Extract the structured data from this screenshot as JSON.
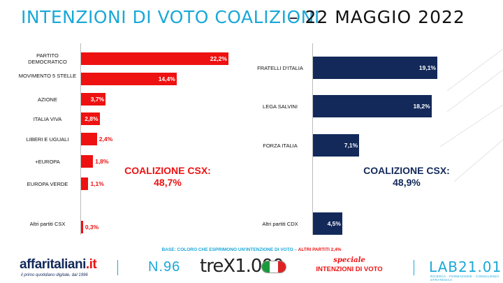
{
  "header": {
    "title": "INTENZIONI DI VOTO COALIZIONI",
    "date": "– 22 MAGGIO 2022"
  },
  "chart_data": [
    {
      "type": "bar",
      "orientation": "horizontal",
      "categories": [
        "PARTITO DEMOCRATICO",
        "MOVIMENTO 5 STELLE",
        "AZIONE",
        "ITALIA VIVA",
        "LIBERI E UGUALI",
        "+EUROPA",
        "EUROPA VERDE",
        "Altri partiti CSX"
      ],
      "values": [
        22.2,
        14.4,
        3.7,
        2.8,
        2.4,
        1.8,
        1.1,
        0.3
      ],
      "labels": [
        "22,2%",
        "14,4%",
        "3,7%",
        "2,8%",
        "2,4%",
        "1,8%",
        "1,1%",
        "0,3%"
      ],
      "color": "#ee1111",
      "annotation": {
        "line1": "COALIZIONE CSX:",
        "line2": "48,7%"
      }
    },
    {
      "type": "bar",
      "orientation": "horizontal",
      "categories": [
        "FRATELLI D'ITALIA",
        "LEGA SALVINI",
        "FORZA ITALIA",
        "Altri partiti CDX"
      ],
      "values": [
        19.1,
        18.2,
        7.1,
        4.5
      ],
      "labels": [
        "19,1%",
        "18,2%",
        "7,1%",
        "4,5%"
      ],
      "color": "#13295a",
      "annotation": {
        "line1": "COALIZIONE CSX:",
        "line2": "48,9%"
      }
    }
  ],
  "base_note": {
    "prefix": "BASE:",
    "text": " COLORO CHE ESPRIMONO UN'INTENZIONE DI VOTO – ",
    "highlight": "ALTRI PARTITI 2,4%"
  },
  "footer": {
    "brand": "affaritaliani",
    "brand_tld": ".it",
    "brand_tagline": "il primo quotidiano digitale, dal 1996",
    "issue": "N.96",
    "trex": "treX1.000",
    "special_line1": "speciale",
    "special_line2": "INTENZIONI DI VOTO",
    "lab": "LAB21.01",
    "lab_tagline": "RICERCA · FORMAZIONE · CONSULENZA STRATEGICA",
    "flag_colors": [
      "#1a9a3a",
      "#ffffff",
      "#dd2222"
    ]
  }
}
